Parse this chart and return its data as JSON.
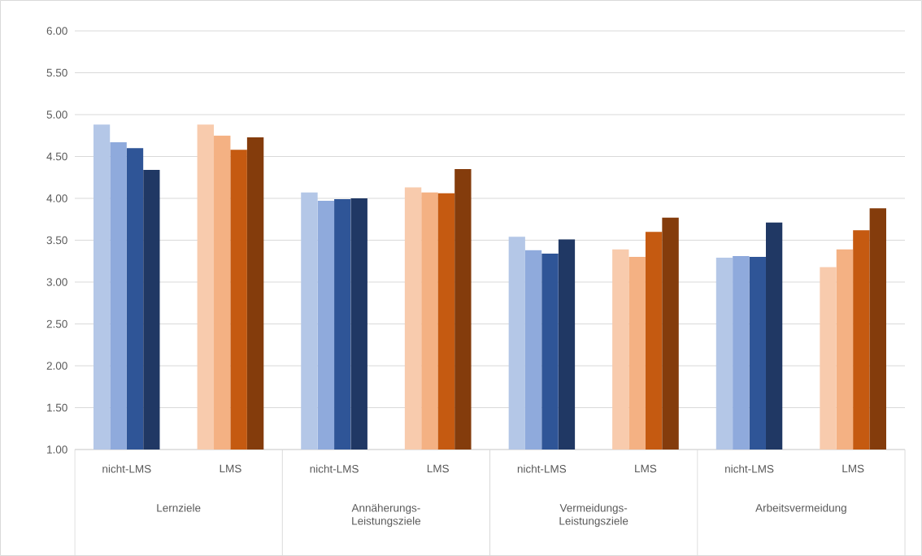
{
  "chart_data": {
    "type": "bar",
    "categories": [
      "nicht-LMS",
      "LMS",
      "nicht-LMS",
      "LMS",
      "nicht-LMS",
      "LMS",
      "nicht-LMS",
      "LMS"
    ],
    "series": [
      {
        "colors": [
          "#b4c7e7",
          "#f8cbad",
          "#b4c7e7",
          "#f8cbad",
          "#b4c7e7",
          "#f8cbad",
          "#b4c7e7",
          "#f8cbad"
        ],
        "values": [
          4.88,
          4.88,
          4.07,
          4.13,
          3.54,
          3.39,
          3.29,
          3.18
        ]
      },
      {
        "colors": [
          "#8faadc",
          "#f4b183",
          "#8faadc",
          "#f4b183",
          "#8faadc",
          "#f4b183",
          "#8faadc",
          "#f4b183"
        ],
        "values": [
          4.67,
          4.75,
          3.97,
          4.07,
          3.38,
          3.3,
          3.31,
          3.39
        ]
      },
      {
        "colors": [
          "#2f5597",
          "#c55a11",
          "#2f5597",
          "#c55a11",
          "#2f5597",
          "#c55a11",
          "#2f5597",
          "#c55a11"
        ],
        "values": [
          4.6,
          4.58,
          3.99,
          4.06,
          3.34,
          3.6,
          3.3,
          3.62
        ]
      },
      {
        "colors": [
          "#203864",
          "#843c0c",
          "#203864",
          "#843c0c",
          "#203864",
          "#843c0c",
          "#203864",
          "#843c0c"
        ],
        "values": [
          4.34,
          4.73,
          4.0,
          4.35,
          3.51,
          3.77,
          3.71,
          3.88
        ]
      }
    ],
    "ylim": [
      1,
      6
    ],
    "yticks": [
      {
        "value": 1,
        "label": "1.00"
      },
      {
        "value": 1.5,
        "label": "1.50"
      },
      {
        "value": 2,
        "label": "2.00"
      },
      {
        "value": 2.5,
        "label": "2.50"
      },
      {
        "value": 3,
        "label": "3.00"
      },
      {
        "value": 3.5,
        "label": "3.50"
      },
      {
        "value": 4,
        "label": "4.00"
      },
      {
        "value": 4.5,
        "label": "4.50"
      },
      {
        "value": 5,
        "label": "5.00"
      },
      {
        "value": 5.5,
        "label": "5.50"
      },
      {
        "value": 6,
        "label": "6.00"
      }
    ],
    "grid": "y",
    "annotations": [
      "Lernziele",
      "Annäherungs-Leistungsziele",
      "Vermeidungs-Leistungsziele",
      "Arbeitsvermeidung"
    ]
  }
}
